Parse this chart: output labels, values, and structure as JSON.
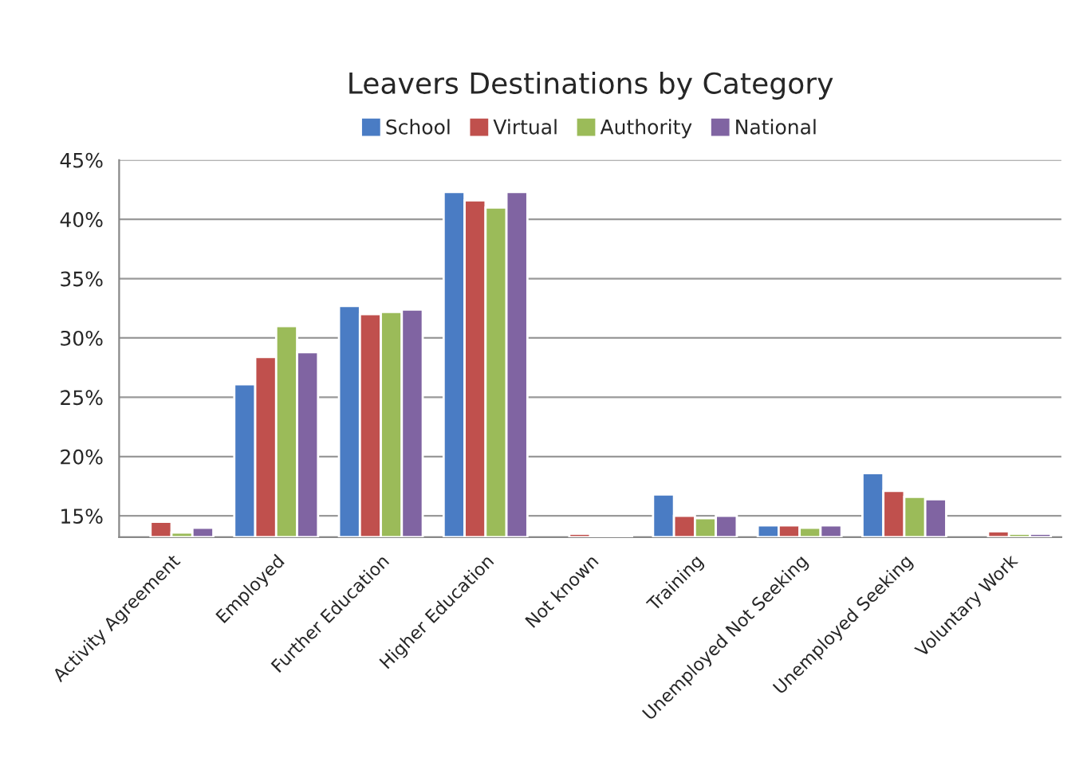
{
  "chart_data": {
    "type": "bar",
    "title": "Leavers Destinations by Category",
    "categories": [
      "Activity Agreement",
      "Employed",
      "Further Education",
      "Higher Education",
      "Not known",
      "Training",
      "Unemployed Not Seeking",
      "Unemployed Seeking",
      "Voluntary Work"
    ],
    "series": [
      {
        "name": "School",
        "color": "#4a7cc4",
        "values": [
          null,
          26.1,
          32.7,
          42.3,
          null,
          16.8,
          14.2,
          18.6,
          null
        ]
      },
      {
        "name": "Virtual",
        "color": "#c0504d",
        "values": [
          14.5,
          28.4,
          32.0,
          41.6,
          13.5,
          15.0,
          14.2,
          17.1,
          13.7
        ]
      },
      {
        "name": "Authority",
        "color": "#9bbb59",
        "values": [
          13.6,
          31.0,
          32.2,
          41.0,
          13.4,
          14.8,
          14.0,
          16.6,
          13.5
        ]
      },
      {
        "name": "National",
        "color": "#8064a2",
        "values": [
          14.0,
          28.8,
          32.4,
          42.3,
          13.4,
          15.0,
          14.2,
          16.4,
          13.5
        ]
      }
    ],
    "ylim": [
      13.2,
      45
    ],
    "yticks": [
      {
        "value": 15,
        "label": "15%"
      },
      {
        "value": 20,
        "label": "20%"
      },
      {
        "value": 25,
        "label": "25%"
      },
      {
        "value": 30,
        "label": "30%"
      },
      {
        "value": 35,
        "label": "35%"
      },
      {
        "value": 40,
        "label": "40%"
      },
      {
        "value": 45,
        "label": "45%"
      }
    ],
    "grid": "y",
    "legend": "top"
  }
}
